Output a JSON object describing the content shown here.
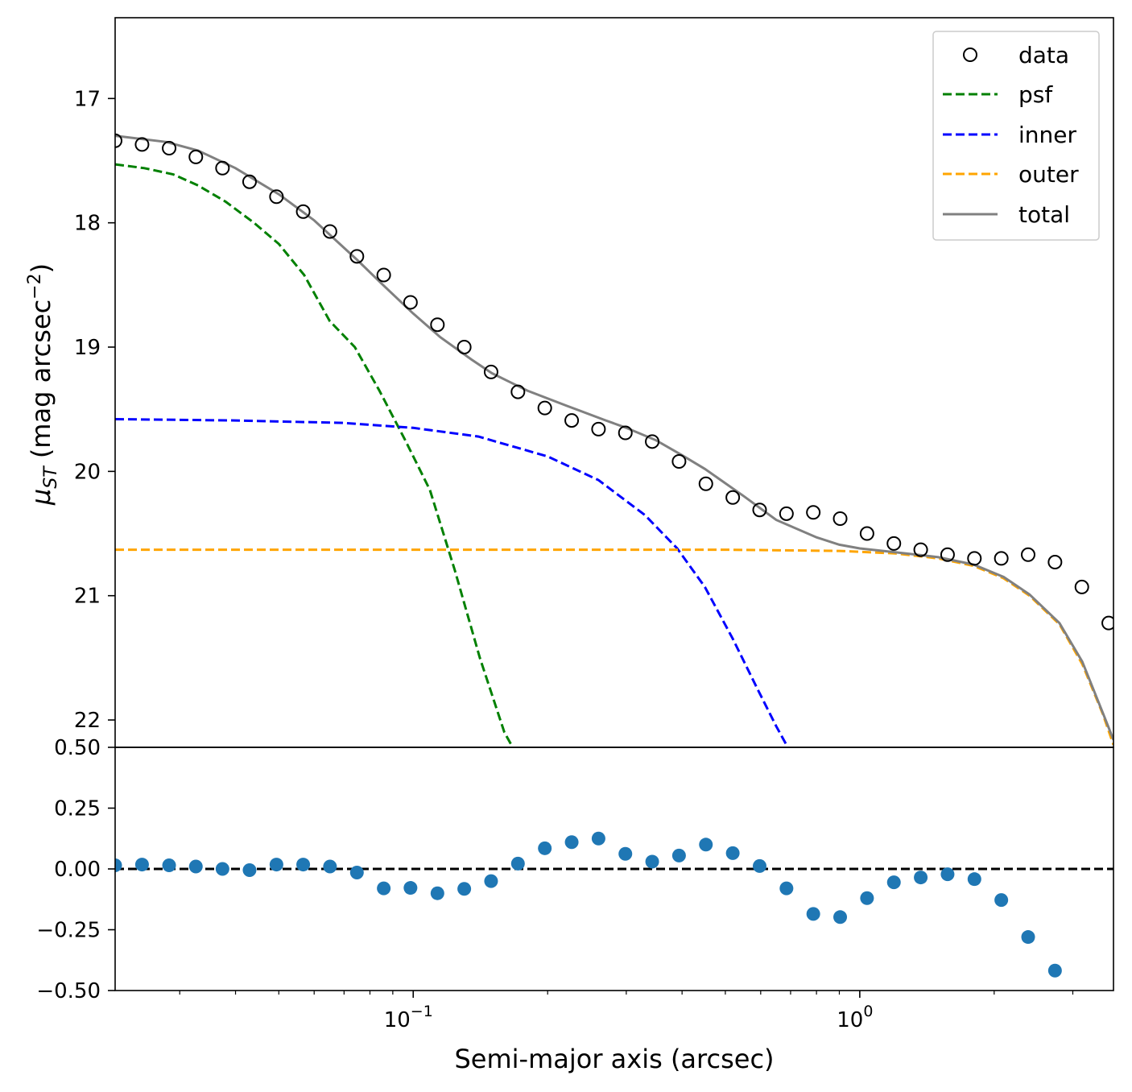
{
  "chart_data": [
    {
      "type": "line",
      "panel": "profile",
      "xscale": "log",
      "xlim": [
        0.0215,
        3.7
      ],
      "ylim": [
        22.22,
        16.35
      ],
      "yinverted": true,
      "ylabel_main": "μ",
      "ylabel_sub": "ST",
      "ylabel_rest": " (mag arcsec",
      "ylabel_sup": "−2",
      "ylabel_close": ")",
      "yticks": [
        17,
        18,
        19,
        20,
        21,
        22
      ],
      "ytick_labels": [
        "17",
        "18",
        "19",
        "20",
        "21",
        "22"
      ],
      "legend_position": "top-right",
      "series": [
        {
          "name": "data",
          "style": "open-circle",
          "color": "#000000",
          "x": [
            0.0215,
            0.0247,
            0.0284,
            0.0326,
            0.0374,
            0.043,
            0.0494,
            0.0567,
            0.0651,
            0.0748,
            0.0859,
            0.0986,
            0.1133,
            0.1301,
            0.1494,
            0.1716,
            0.1971,
            0.2264,
            0.26,
            0.2986,
            0.3429,
            0.3938,
            0.4523,
            0.5195,
            0.5967,
            0.6853,
            0.787,
            0.9039,
            1.0382,
            1.1924,
            1.3694,
            1.5728,
            1.8064,
            2.0747,
            2.3828,
            2.7367,
            3.1432,
            3.61
          ],
          "y": [
            17.34,
            17.37,
            17.4,
            17.47,
            17.56,
            17.67,
            17.79,
            17.91,
            18.07,
            18.27,
            18.42,
            18.64,
            18.82,
            19.0,
            19.2,
            19.36,
            19.49,
            19.59,
            19.66,
            19.69,
            19.76,
            19.92,
            20.1,
            20.21,
            20.31,
            20.34,
            20.33,
            20.38,
            20.5,
            20.58,
            20.63,
            20.67,
            20.7,
            20.7,
            20.67,
            20.73,
            20.93,
            21.22
          ]
        },
        {
          "name": "psf",
          "style": "dashed",
          "color": "#008000",
          "x": [
            0.0215,
            0.025,
            0.029,
            0.033,
            0.038,
            0.044,
            0.05,
            0.057,
            0.065,
            0.074,
            0.084,
            0.096,
            0.109,
            0.124,
            0.141,
            0.16,
            0.167
          ],
          "y": [
            17.53,
            17.56,
            17.61,
            17.7,
            17.83,
            18.0,
            18.17,
            18.42,
            18.79,
            19.0,
            19.35,
            19.75,
            20.15,
            20.8,
            21.5,
            22.1,
            22.22
          ]
        },
        {
          "name": "inner",
          "style": "dashed",
          "color": "#0000ff",
          "x": [
            0.0215,
            0.04,
            0.07,
            0.1,
            0.14,
            0.2,
            0.26,
            0.33,
            0.39,
            0.45,
            0.52,
            0.59,
            0.65,
            0.69
          ],
          "y": [
            19.58,
            19.59,
            19.61,
            19.65,
            19.72,
            19.88,
            20.07,
            20.35,
            20.62,
            20.93,
            21.35,
            21.75,
            22.05,
            22.22
          ]
        },
        {
          "name": "outer",
          "style": "dashed",
          "color": "#ffa500",
          "x": [
            0.0215,
            0.2,
            0.5,
            0.9,
            1.2,
            1.5,
            1.8,
            2.1,
            2.4,
            2.8,
            3.15,
            3.5,
            3.7
          ],
          "y": [
            20.63,
            20.63,
            20.63,
            20.64,
            20.66,
            20.7,
            20.76,
            20.86,
            21.0,
            21.23,
            21.55,
            21.95,
            22.2
          ]
        },
        {
          "name": "total",
          "style": "solid",
          "color": "#808080",
          "x": [
            0.0215,
            0.028,
            0.033,
            0.04,
            0.05,
            0.06,
            0.075,
            0.085,
            0.1,
            0.115,
            0.135,
            0.15,
            0.18,
            0.22,
            0.27,
            0.3,
            0.35,
            0.4,
            0.45,
            0.55,
            0.65,
            0.8,
            0.9,
            1.0,
            1.2,
            1.5,
            1.8,
            2.1,
            2.4,
            2.8,
            3.15,
            3.5,
            3.7
          ],
          "y": [
            17.3,
            17.35,
            17.42,
            17.56,
            17.77,
            17.98,
            18.3,
            18.49,
            18.73,
            18.92,
            19.1,
            19.21,
            19.35,
            19.47,
            19.59,
            19.65,
            19.75,
            19.87,
            19.98,
            20.2,
            20.39,
            20.53,
            20.59,
            20.62,
            20.65,
            20.69,
            20.75,
            20.85,
            20.99,
            21.22,
            21.53,
            21.94,
            22.16
          ]
        }
      ]
    },
    {
      "type": "scatter",
      "panel": "residuals",
      "xscale": "log",
      "xlim": [
        0.0215,
        3.7
      ],
      "ylim": [
        -0.5,
        0.5
      ],
      "xlabel": "Semi-major axis (arcsec)",
      "yticks": [
        -0.5,
        -0.25,
        0.0,
        0.25,
        0.5
      ],
      "ytick_labels": [
        "−0.50",
        "−0.25",
        "0.00",
        "0.25",
        "0.50"
      ],
      "xticks": [
        0.1,
        1
      ],
      "xtick_labels": [
        {
          "base": "10",
          "exp": "−1"
        },
        {
          "base": "10",
          "exp": "0"
        }
      ],
      "zero_line": {
        "y": 0.0,
        "style": "dashed",
        "color": "#000000"
      },
      "point_color": "#1f77b4",
      "x": [
        0.0215,
        0.0247,
        0.0284,
        0.0326,
        0.0374,
        0.043,
        0.0494,
        0.0567,
        0.0651,
        0.0748,
        0.0859,
        0.0986,
        0.1133,
        0.1301,
        0.1494,
        0.1716,
        0.1971,
        0.2264,
        0.26,
        0.2986,
        0.3429,
        0.3938,
        0.4523,
        0.5195,
        0.5967,
        0.6853,
        0.787,
        0.9039,
        1.0382,
        1.1924,
        1.3694,
        1.5728,
        1.8064,
        2.0747,
        2.3828,
        2.7367
      ],
      "y": [
        0.015,
        0.018,
        0.015,
        0.01,
        0.0,
        -0.005,
        0.018,
        0.018,
        0.01,
        -0.015,
        -0.08,
        -0.078,
        -0.1,
        -0.082,
        -0.05,
        0.022,
        0.085,
        0.11,
        0.125,
        0.062,
        0.03,
        0.055,
        0.1,
        0.065,
        0.012,
        -0.08,
        -0.185,
        -0.198,
        -0.12,
        -0.055,
        -0.035,
        -0.022,
        -0.042,
        -0.128,
        -0.28,
        -0.418
      ]
    }
  ]
}
